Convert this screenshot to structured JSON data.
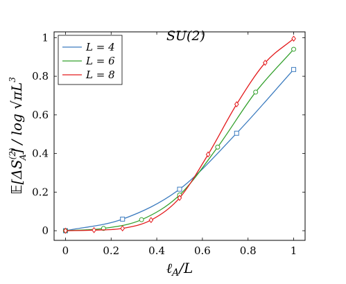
{
  "chart_data": {
    "type": "line",
    "title": "SU(2)",
    "xlabel": "ℓ_A/L",
    "ylabel": "𝔼[ΔS_A^(2)] / log √(πL³)",
    "xlim": [
      -0.05,
      1.05
    ],
    "ylim": [
      -0.05,
      1.03
    ],
    "xticks": [
      0,
      0.2,
      0.4,
      0.6,
      0.8,
      1
    ],
    "xtick_labels": [
      "0",
      "0.2",
      "0.4",
      "0.6",
      "0.8",
      "1"
    ],
    "yticks": [
      0,
      0.2,
      0.4,
      0.6,
      0.8,
      1
    ],
    "ytick_labels": [
      "0",
      "0.2",
      "0.4",
      "0.6",
      "0.8",
      "1"
    ],
    "grid": false,
    "legend_position": "top-left",
    "series": [
      {
        "name": "L = 4",
        "color": "#3b7bbf",
        "marker": "square",
        "points": [
          [
            0,
            0.0
          ],
          [
            0.25,
            0.06
          ],
          [
            0.5,
            0.215
          ],
          [
            0.75,
            0.505
          ],
          [
            1.0,
            0.835
          ]
        ]
      },
      {
        "name": "L = 6",
        "color": "#33a02c",
        "marker": "circle",
        "points": [
          [
            0,
            0.0
          ],
          [
            0.1667,
            0.012
          ],
          [
            0.3333,
            0.057
          ],
          [
            0.5,
            0.185
          ],
          [
            0.6667,
            0.433
          ],
          [
            0.8333,
            0.718
          ],
          [
            1.0,
            0.94
          ]
        ]
      },
      {
        "name": "L = 8",
        "color": "#e31a1c",
        "marker": "diamond",
        "points": [
          [
            0,
            0.0
          ],
          [
            0.125,
            0.003
          ],
          [
            0.25,
            0.012
          ],
          [
            0.375,
            0.055
          ],
          [
            0.5,
            0.17
          ],
          [
            0.625,
            0.395
          ],
          [
            0.75,
            0.655
          ],
          [
            0.875,
            0.87
          ],
          [
            1.0,
            0.995
          ]
        ]
      }
    ]
  }
}
